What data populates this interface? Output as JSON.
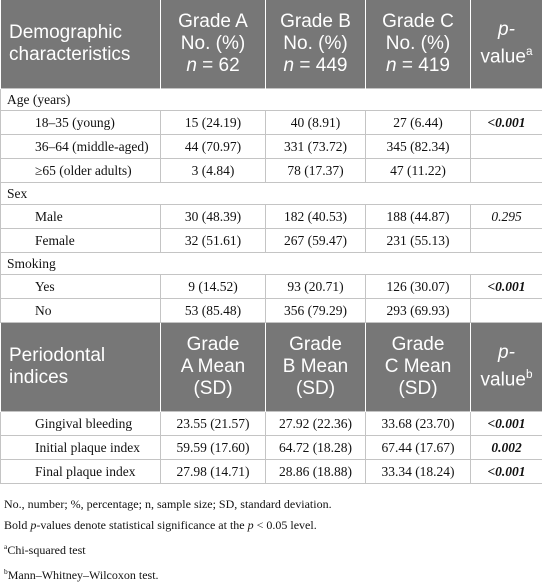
{
  "table": {
    "header": [
      [
        [
          {
            "text": "Demographic"
          }
        ],
        [
          {
            "text": "characteristics"
          }
        ]
      ],
      [
        [
          {
            "text": "Grade A"
          }
        ],
        [
          {
            "text": "No. (%)"
          }
        ],
        [
          {
            "text": "n",
            "italic": true
          },
          {
            "text": " = 62"
          }
        ]
      ],
      [
        [
          {
            "text": "Grade B"
          }
        ],
        [
          {
            "text": "No. (%)"
          }
        ],
        [
          {
            "text": "n",
            "italic": true
          },
          {
            "text": " = 449"
          }
        ]
      ],
      [
        [
          {
            "text": "Grade C"
          }
        ],
        [
          {
            "text": "No. (%)"
          }
        ],
        [
          {
            "text": "n",
            "italic": true
          },
          {
            "text": " = 419"
          }
        ]
      ],
      [
        [
          {
            "text": "p-",
            "italic": true
          }
        ],
        [
          {
            "text": "value",
            "sup": "a"
          }
        ]
      ]
    ],
    "sections": [
      {
        "title": "Age (years)",
        "rows": [
          [
            "18–35 (young)",
            "15 (24.19)",
            "40 (8.91)",
            "27 (6.44)",
            {
              "text": "<0.001",
              "bold": true
            }
          ],
          [
            "36–64 (middle-aged)",
            "44 (70.97)",
            "331 (73.72)",
            "345 (82.34)"
          ],
          [
            "≥65 (older adults)",
            "3 (4.84)",
            "78 (17.37)",
            "47 (11.22)"
          ]
        ]
      },
      {
        "title": "Sex",
        "rows": [
          [
            "Male",
            "30 (48.39)",
            "182 (40.53)",
            "188 (44.87)",
            {
              "text": "0.295",
              "bold": false
            }
          ],
          [
            "Female",
            "32 (51.61)",
            "267 (59.47)",
            "231 (55.13)"
          ]
        ]
      },
      {
        "title": "Smoking",
        "rows": [
          [
            "Yes",
            "9 (14.52)",
            "93 (20.71)",
            "126 (30.07)",
            {
              "text": "<0.001",
              "bold": true
            }
          ],
          [
            "No",
            "53 (85.48)",
            "356 (79.29)",
            "293 (69.93)"
          ]
        ]
      }
    ],
    "header2": [
      [
        [
          {
            "text": "Periodontal"
          }
        ],
        [
          {
            "text": "indices"
          }
        ]
      ],
      [
        [
          {
            "text": "Grade"
          }
        ],
        [
          {
            "text": "A Mean"
          }
        ],
        [
          {
            "text": "(SD)"
          }
        ]
      ],
      [
        [
          {
            "text": "Grade"
          }
        ],
        [
          {
            "text": "B Mean"
          }
        ],
        [
          {
            "text": "(SD)"
          }
        ]
      ],
      [
        [
          {
            "text": "Grade"
          }
        ],
        [
          {
            "text": "C Mean"
          }
        ],
        [
          {
            "text": "(SD)"
          }
        ]
      ],
      [
        [
          {
            "text": "p-",
            "italic": true
          }
        ],
        [
          {
            "text": "value",
            "sup": "b"
          }
        ]
      ]
    ],
    "rows2": [
      [
        "Gingival bleeding",
        "23.55 (21.57)",
        "27.92 (22.36)",
        "33.68 (23.70)",
        {
          "text": "<0.001",
          "bold": true
        }
      ],
      [
        "Initial plaque index",
        "59.59 (17.60)",
        "64.72 (18.28)",
        "67.44 (17.67)",
        {
          "text": "0.002",
          "bold": true
        }
      ],
      [
        "Final plaque index",
        "27.98 (14.71)",
        "28.86 (18.88)",
        "33.34 (18.24)",
        {
          "text": "<0.001",
          "bold": true
        }
      ]
    ]
  },
  "footnotes": [
    [
      {
        "text": "No., number; %, percentage; n, sample size; SD, standard deviation."
      }
    ],
    [
      {
        "text": "Bold "
      },
      {
        "text": "p",
        "italic": true
      },
      {
        "text": "-values denote statistical significance at the "
      },
      {
        "text": "p",
        "italic": true
      },
      {
        "text": " < 0.05 level."
      }
    ],
    [
      {
        "sup": "a",
        "text": "Chi-squared test"
      }
    ],
    [
      {
        "sup": "b",
        "text": "Mann–Whitney–Wilcoxon test."
      }
    ]
  ]
}
